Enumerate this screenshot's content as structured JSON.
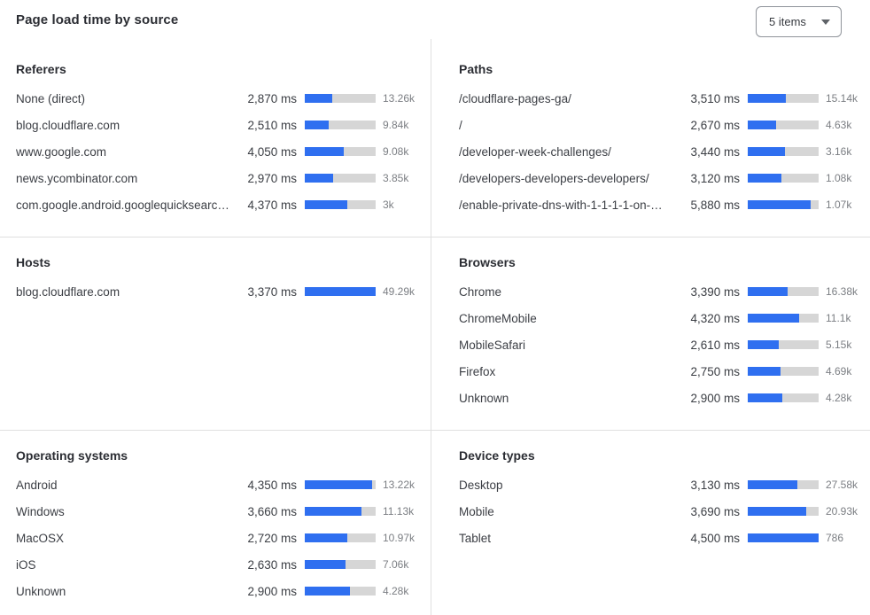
{
  "header": {
    "title": "Page load time by source",
    "items_selector_label": "5 items"
  },
  "colors": {
    "bar_fill": "#2F6FF0",
    "bar_track": "#D6D6D6",
    "divider": "#DFDFDF",
    "heading_text": "#2B2D33",
    "label_text": "#3B3E44",
    "count_text": "#7B7E83"
  },
  "sections": [
    {
      "title": "Referers",
      "items": [
        {
          "label": "None (direct)",
          "ms": "2,870 ms",
          "count": "13.26k",
          "bar_pct": 39.2
        },
        {
          "label": "blog.cloudflare.com",
          "ms": "2,510 ms",
          "count": "9.84k",
          "bar_pct": 34.2
        },
        {
          "label": "www.google.com",
          "ms": "4,050 ms",
          "count": "9.08k",
          "bar_pct": 55.3
        },
        {
          "label": "news.ycombinator.com",
          "ms": "2,970 ms",
          "count": "3.85k",
          "bar_pct": 40.5
        },
        {
          "label": "com.google.android.googlequicksearc…",
          "ms": "4,370 ms",
          "count": "3k",
          "bar_pct": 59.6
        }
      ]
    },
    {
      "title": "Paths",
      "items": [
        {
          "label": "/cloudflare-pages-ga/",
          "ms": "3,510 ms",
          "count": "15.14k",
          "bar_pct": 53.3
        },
        {
          "label": "/",
          "ms": "2,670 ms",
          "count": "4.63k",
          "bar_pct": 40.5
        },
        {
          "label": "/developer-week-challenges/",
          "ms": "3,440 ms",
          "count": "3.16k",
          "bar_pct": 52.2
        },
        {
          "label": "/developers-developers-developers/",
          "ms": "3,120 ms",
          "count": "1.08k",
          "bar_pct": 47.3
        },
        {
          "label": "/enable-private-dns-with-1-1-1-1-on-…",
          "ms": "5,880 ms",
          "count": "1.07k",
          "bar_pct": 89.2
        }
      ]
    },
    {
      "title": "Hosts",
      "items": [
        {
          "label": "blog.cloudflare.com",
          "ms": "3,370 ms",
          "count": "49.29k",
          "bar_pct": 100
        }
      ]
    },
    {
      "title": "Browsers",
      "items": [
        {
          "label": "Chrome",
          "ms": "3,390 ms",
          "count": "16.38k",
          "bar_pct": 56.5
        },
        {
          "label": "ChromeMobile",
          "ms": "4,320 ms",
          "count": "11.1k",
          "bar_pct": 72.0
        },
        {
          "label": "MobileSafari",
          "ms": "2,610 ms",
          "count": "5.15k",
          "bar_pct": 43.5
        },
        {
          "label": "Firefox",
          "ms": "2,750 ms",
          "count": "4.69k",
          "bar_pct": 45.8
        },
        {
          "label": "Unknown",
          "ms": "2,900 ms",
          "count": "4.28k",
          "bar_pct": 48.3
        }
      ]
    },
    {
      "title": "Operating systems",
      "items": [
        {
          "label": "Android",
          "ms": "4,350 ms",
          "count": "13.22k",
          "bar_pct": 95.4
        },
        {
          "label": "Windows",
          "ms": "3,660 ms",
          "count": "11.13k",
          "bar_pct": 80.3
        },
        {
          "label": "MacOSX",
          "ms": "2,720 ms",
          "count": "10.97k",
          "bar_pct": 59.6
        },
        {
          "label": "iOS",
          "ms": "2,630 ms",
          "count": "7.06k",
          "bar_pct": 57.7
        },
        {
          "label": "Unknown",
          "ms": "2,900 ms",
          "count": "4.28k",
          "bar_pct": 63.6
        }
      ]
    },
    {
      "title": "Device types",
      "items": [
        {
          "label": "Desktop",
          "ms": "3,130 ms",
          "count": "27.58k",
          "bar_pct": 69.6
        },
        {
          "label": "Mobile",
          "ms": "3,690 ms",
          "count": "20.93k",
          "bar_pct": 82.0
        },
        {
          "label": "Tablet",
          "ms": "4,500 ms",
          "count": "786",
          "bar_pct": 100
        }
      ]
    }
  ]
}
